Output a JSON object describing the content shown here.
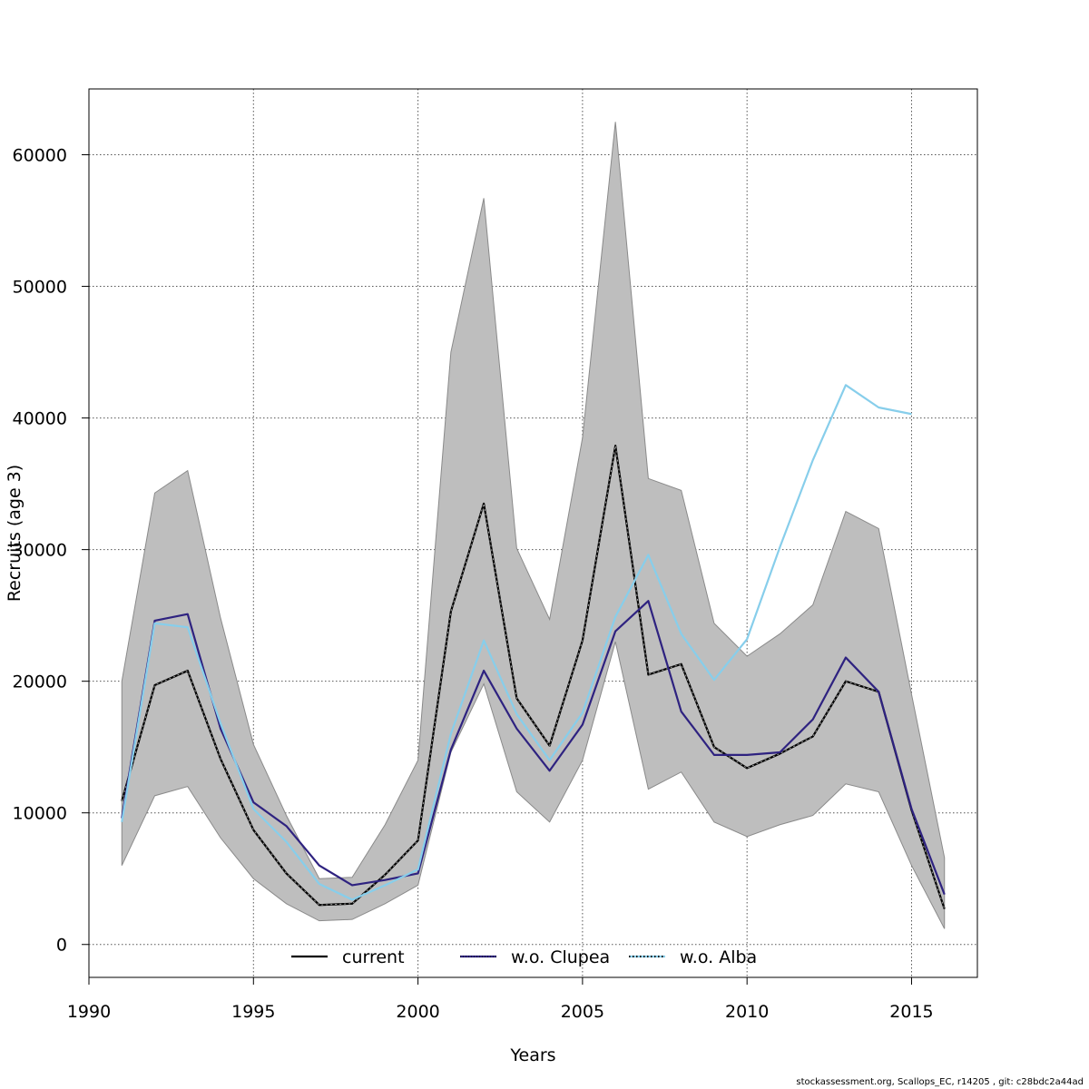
{
  "chart_data": {
    "type": "line",
    "title": "",
    "xlabel": "Years",
    "ylabel": "Recruits (age 3)",
    "xlim": [
      1990,
      2017
    ],
    "ylim": [
      -2500,
      65000
    ],
    "x_ticks": [
      1990,
      1995,
      2000,
      2005,
      2010,
      2015
    ],
    "y_ticks": [
      0,
      10000,
      20000,
      30000,
      40000,
      50000,
      60000
    ],
    "grid": true,
    "legend_position": "bottom",
    "band": {
      "x": [
        1991,
        1992,
        1993,
        1994,
        1995,
        1996,
        1997,
        1998,
        1999,
        2000,
        2001,
        2002,
        2003,
        2004,
        2005,
        2006,
        2007,
        2008,
        2009,
        2010,
        2011,
        2012,
        2013,
        2014,
        2015,
        2016
      ],
      "lower": [
        6000,
        11300,
        12000,
        8100,
        5000,
        3100,
        1800,
        1900,
        3100,
        4500,
        14600,
        19800,
        11600,
        9300,
        14000,
        23000,
        11800,
        13100,
        9300,
        8200,
        9100,
        9800,
        12200,
        11600,
        6000,
        1200
      ],
      "upper": [
        20000,
        34300,
        36000,
        24800,
        15200,
        9800,
        5000,
        5100,
        9100,
        14000,
        45000,
        56700,
        30100,
        24700,
        38500,
        62500,
        35400,
        34500,
        24400,
        21900,
        23600,
        25800,
        32900,
        31600,
        19000,
        6600
      ],
      "color": "#bebebe"
    },
    "series": [
      {
        "name": "current",
        "color": "#000000",
        "x": [
          1991,
          1992,
          1993,
          1994,
          1995,
          1996,
          1997,
          1998,
          1999,
          2000,
          2001,
          2002,
          2003,
          2004,
          2005,
          2006,
          2007,
          2008,
          2009,
          2010,
          2011,
          2012,
          2013,
          2014,
          2015,
          2016
        ],
        "values": [
          10900,
          19700,
          20800,
          14100,
          8700,
          5400,
          3000,
          3100,
          5300,
          7900,
          25300,
          33500,
          18700,
          15100,
          23100,
          37900,
          20500,
          21300,
          15000,
          13400,
          14500,
          15800,
          20000,
          19200,
          10200,
          2700
        ]
      },
      {
        "name": "w.o. Clupea",
        "color": "#2e2280",
        "x": [
          1991,
          1992,
          1993,
          1994,
          1995,
          1996,
          1997,
          1998,
          1999,
          2000,
          2001,
          2002,
          2003,
          2004,
          2005,
          2006,
          2007,
          2008,
          2009,
          2010,
          2011,
          2012,
          2013,
          2014,
          2015,
          2016
        ],
        "values": [
          9600,
          24600,
          25100,
          16400,
          10800,
          9000,
          6000,
          4500,
          4900,
          5400,
          14800,
          20800,
          16400,
          13200,
          16700,
          23800,
          26100,
          17700,
          14400,
          14400,
          14600,
          17100,
          21800,
          19200,
          10300,
          3800
        ]
      },
      {
        "name": "w.o. Alba",
        "color": "#87ceeb",
        "x": [
          1991,
          1992,
          1993,
          1994,
          1995,
          1996,
          1997,
          1998,
          1999,
          2000,
          2001,
          2002,
          2003,
          2004,
          2005,
          2006,
          2007,
          2008,
          2009,
          2010,
          2011,
          2012,
          2013,
          2014,
          2015
        ],
        "values": [
          9300,
          24400,
          24100,
          16800,
          10300,
          7800,
          4600,
          3400,
          4500,
          5700,
          16000,
          23100,
          17500,
          14000,
          17600,
          24900,
          29600,
          23600,
          20100,
          23200,
          30200,
          36800,
          42500,
          40800,
          40300
        ]
      }
    ]
  },
  "credit": "stockassessment.org, Scallops_EC, r14205 , git: c28bdc2a44ad"
}
